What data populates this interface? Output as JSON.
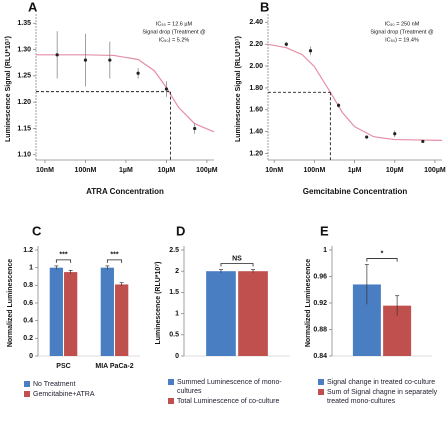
{
  "chart_data": [
    {
      "type": "scatter",
      "title": "A",
      "x_label": "ATRA Concentration",
      "y_label": "Luminescence Signal (RLU*10⁷)",
      "xscale": "log",
      "xlim": [
        6,
        150000
      ],
      "xticks": [
        {
          "value": 10,
          "label": "10nM"
        },
        {
          "value": 100,
          "label": "100nM"
        },
        {
          "value": 1000,
          "label": "1µM"
        },
        {
          "value": 10000,
          "label": "10µM"
        },
        {
          "value": 100000,
          "label": "100µM"
        }
      ],
      "ylim": [
        1.09,
        1.36
      ],
      "yticks": [
        {
          "value": 1.1,
          "label": "1.10"
        },
        1.15,
        {
          "value": 1.2,
          "label": "1.20"
        },
        1.25,
        {
          "value": 1.3,
          "label": "1.30"
        },
        1.35
      ],
      "points": {
        "color": "#222222",
        "x": [
          20,
          100,
          400,
          2000,
          10000,
          50000
        ],
        "y": [
          1.29,
          1.28,
          1.28,
          1.255,
          1.225,
          1.15
        ],
        "errors": [
          0.045,
          0.05,
          0.035,
          0.01,
          0.015,
          0.01
        ]
      },
      "fit": {
        "color": "#e58fa6",
        "x": [
          6,
          20,
          100,
          500,
          2000,
          5000,
          10000,
          20000,
          50000,
          150000
        ],
        "y": [
          1.29,
          1.29,
          1.29,
          1.2888,
          1.2811,
          1.26,
          1.2279,
          1.19,
          1.159,
          1.1436
        ]
      },
      "reference_lines": {
        "x": 12600,
        "y": 1.22,
        "color": "#222222"
      },
      "annotation": [
        "IC₅₀ = 12.6 µM",
        "Signal drop (Treatment @",
        "IC₅₀) = 5.2%"
      ]
    },
    {
      "type": "scatter",
      "title": "B",
      "x_label": "Gemcitabine Concentration",
      "y_label": "Luminescence Signal (RLU*10⁷)",
      "xscale": "log",
      "xlim": [
        7,
        150000
      ],
      "xticks": [
        {
          "value": 10,
          "label": "10nM"
        },
        {
          "value": 100,
          "label": "100nM"
        },
        {
          "value": 1000,
          "label": "1µM"
        },
        {
          "value": 10000,
          "label": "10µM"
        },
        {
          "value": 100000,
          "label": "100µM"
        }
      ],
      "ylim": [
        1.14,
        2.44
      ],
      "yticks": [
        {
          "value": 1.2,
          "label": "1.20"
        },
        {
          "value": 1.4,
          "label": "1.40"
        },
        {
          "value": 1.6,
          "label": "1.60"
        },
        {
          "value": 1.8,
          "label": "1.80"
        },
        {
          "value": 2,
          "label": "2.00"
        },
        {
          "value": 2.2,
          "label": "2.20"
        },
        {
          "value": 2.4,
          "label": "2.40"
        }
      ],
      "points": {
        "color": "#222222",
        "x": [
          20,
          80,
          400,
          2000,
          10000,
          50000
        ],
        "y": [
          2.2,
          2.14,
          1.64,
          1.35,
          1.38,
          1.31
        ],
        "errors": [
          0.02,
          0.04,
          0.02,
          0.015,
          0.03,
          0.015
        ]
      },
      "fit": {
        "color": "#e58fa6",
        "x": [
          7,
          20,
          50,
          100,
          250,
          500,
          1000,
          3000,
          10000,
          150000
        ],
        "y": [
          2.199,
          2.168,
          2.104,
          1.995,
          1.76,
          1.574,
          1.445,
          1.353,
          1.327,
          1.32
        ]
      },
      "reference_lines": {
        "x": 250,
        "y": 1.76,
        "color": "#222222"
      },
      "annotation": [
        "IC₅₀ = 250 nM",
        "Signal drop (Treatment @",
        "IC₅₀) = 19.4%"
      ]
    },
    {
      "type": "bar",
      "title": "C",
      "y_label": "Normalized Luminescence",
      "categories": [
        "PSC",
        "MIA PaCa-2"
      ],
      "series": [
        {
          "name": "No Treatment",
          "color": "#4a7ec2",
          "values": [
            1.0,
            1.0
          ],
          "errors": [
            0.02,
            0.02
          ]
        },
        {
          "name": "Gemcitabine+ATRA",
          "color": "#c0504d",
          "values": [
            0.95,
            0.81
          ],
          "errors": [
            0.02,
            0.02
          ]
        }
      ],
      "ylim": [
        0,
        1.2
      ],
      "yticks": [
        0,
        0.2,
        0.4,
        0.6,
        0.8,
        1,
        1.2
      ],
      "significance": [
        "***",
        "***"
      ]
    },
    {
      "type": "bar",
      "title": "D",
      "y_label": "Luminescence (RLU*10⁷)",
      "series": [
        {
          "name": "Summed Luminescence of mono-cultures",
          "color": "#4a7ec2",
          "values": [
            2.0
          ],
          "errors": [
            0.04
          ]
        },
        {
          "name": "Total Luminescence of co-culture",
          "color": "#c0504d",
          "values": [
            2.0
          ],
          "errors": [
            0.04
          ]
        }
      ],
      "ylim": [
        0,
        2.5
      ],
      "yticks": [
        0,
        0.5,
        1,
        1.5,
        2,
        2.5
      ],
      "significance": [
        "NS"
      ]
    },
    {
      "type": "bar",
      "title": "E",
      "y_label": "Normalized Luminescence",
      "series": [
        {
          "name": "Signal change in treated co-culture",
          "color": "#4a7ec2",
          "values": [
            0.948
          ],
          "errors": [
            0.03
          ]
        },
        {
          "name": "Sum of Signal chagne in separately treated mono-cultures",
          "color": "#c0504d",
          "values": [
            0.916
          ],
          "errors": [
            0.015
          ]
        }
      ],
      "ylim": [
        0.84,
        1
      ],
      "yticks": [
        0.84,
        0.88,
        0.92,
        0.96,
        1
      ],
      "significance": [
        "*"
      ]
    }
  ]
}
